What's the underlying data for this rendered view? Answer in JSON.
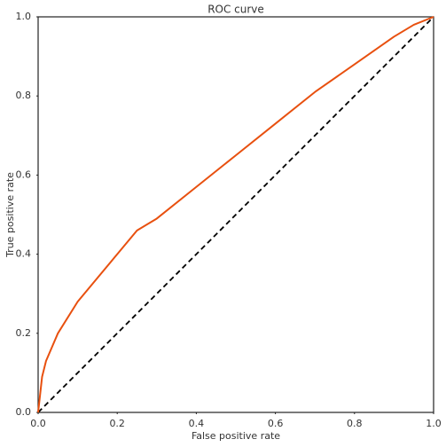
{
  "chart_data": {
    "type": "line",
    "title": "ROC curve",
    "x_label": "False positive rate",
    "y_label": "True positive rate",
    "x": [
      0,
      0.01,
      0.02,
      0.05,
      0.1,
      0.15,
      0.2,
      0.25,
      0.3,
      0.4,
      0.5,
      0.6,
      0.7,
      0.8,
      0.9,
      0.95,
      1.0
    ],
    "series": [
      {
        "color": "#e8500f",
        "dash": false,
        "values": [
          0,
          0.09,
          0.13,
          0.2,
          0.28,
          0.34,
          0.4,
          0.46,
          0.49,
          0.57,
          0.65,
          0.73,
          0.81,
          0.88,
          0.95,
          0.98,
          1.0
        ]
      },
      {
        "color": "#000000",
        "dash": true,
        "values": [
          0,
          0.01,
          0.02,
          0.05,
          0.1,
          0.15,
          0.2,
          0.25,
          0.3,
          0.4,
          0.5,
          0.6,
          0.7,
          0.8,
          0.9,
          0.95,
          1.0
        ]
      }
    ],
    "xlim": [
      0,
      1
    ],
    "ylim": [
      0,
      1
    ],
    "xticks": [
      {
        "value": 0,
        "label": "0.0"
      },
      0.2,
      0.4,
      0.6,
      0.8,
      {
        "value": 1,
        "label": "1.0"
      }
    ],
    "yticks": [
      {
        "value": 0,
        "label": "0.0"
      },
      0.2,
      0.4,
      0.6,
      0.8,
      {
        "value": 1,
        "label": "1.0"
      }
    ],
    "grid": false
  }
}
